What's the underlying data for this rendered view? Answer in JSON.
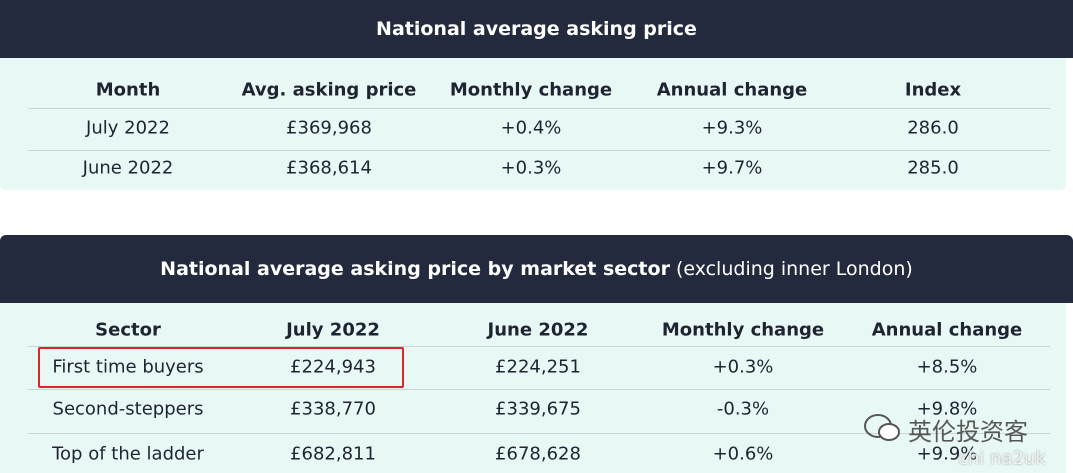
{
  "tables": [
    {
      "title": "National average asking price",
      "columns": [
        "Month",
        "Avg. asking price",
        "Monthly change",
        "Annual change",
        "Index"
      ],
      "rows": [
        [
          "July 2022",
          "£369,968",
          "+0.4%",
          "+9.3%",
          "286.0"
        ],
        [
          "June 2022",
          "£368,614",
          "+0.3%",
          "+9.7%",
          "285.0"
        ]
      ]
    },
    {
      "title": "National average asking price by market sector",
      "title_note": "(excluding inner London)",
      "columns": [
        "Sector",
        "July 2022",
        "June 2022",
        "Monthly change",
        "Annual change"
      ],
      "rows": [
        [
          "First time buyers",
          "£224,943",
          "£224,251",
          "+0.3%",
          "+8.5%"
        ],
        [
          "Second-steppers",
          "£338,770",
          "£339,675",
          "-0.3%",
          "+9.8%"
        ],
        [
          "Top of the ladder",
          "£682,811",
          "£678,628",
          "+0.6%",
          "+9.9%"
        ]
      ]
    }
  ],
  "watermark": {
    "text": "英伦投资客",
    "subtext": "chi na2uk"
  }
}
